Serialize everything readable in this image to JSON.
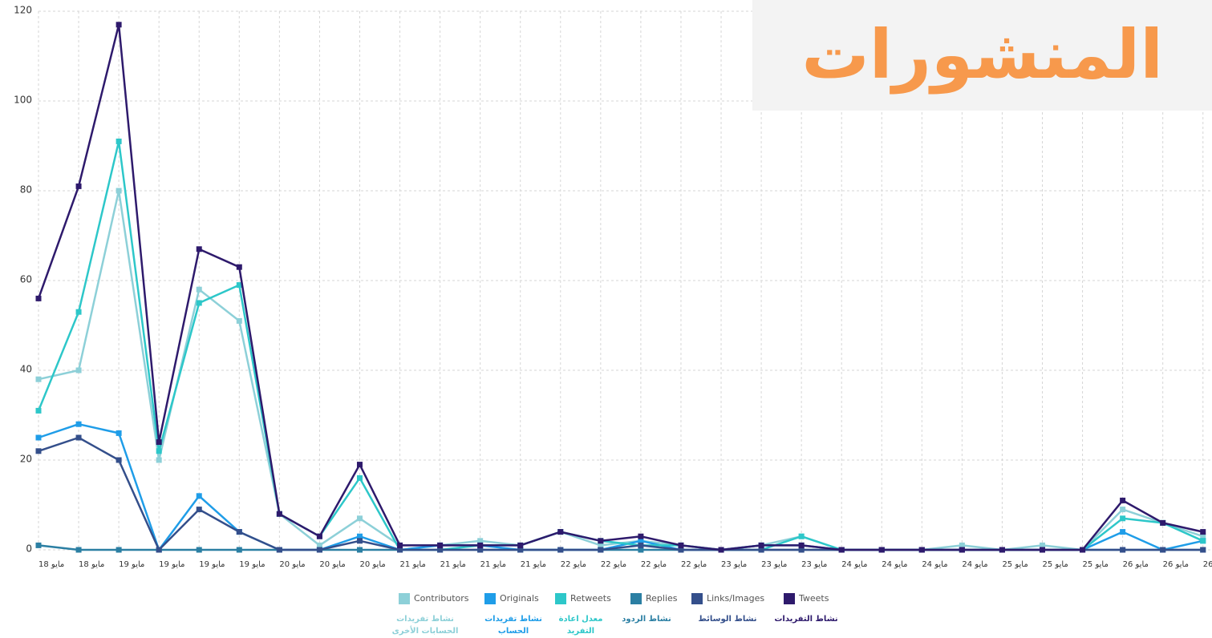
{
  "chart_data": {
    "type": "line",
    "title": "المنشورات",
    "categories": [
      "مايو 18",
      "مايو 18",
      "مايو 19",
      "مايو 19",
      "مايو 19",
      "مايو 19",
      "مايو 20",
      "مايو 20",
      "مايو 20",
      "مايو 21",
      "مايو 21",
      "مايو 21",
      "مايو 21",
      "مايو 22",
      "مايو 22",
      "مايو 22",
      "مايو 22",
      "مايو 23",
      "مايو 23",
      "مايو 23",
      "مايو 24",
      "مايو 24",
      "مايو 24",
      "مايو 24",
      "مايو 25",
      "مايو 25",
      "مايو 25",
      "مايو 26",
      "مايو 26",
      "مايو 26"
    ],
    "ylim": [
      0,
      120
    ],
    "yticks": [
      0,
      20,
      40,
      60,
      80,
      100,
      120
    ],
    "grid": true,
    "series": [
      {
        "name": "Contributors",
        "color": "#8dd0d8",
        "description": [
          "نشاط تفريدات",
          "الحسابات الأخرى"
        ],
        "values": [
          38,
          40,
          80,
          20,
          58,
          51,
          8,
          1,
          7,
          1,
          1,
          2,
          1,
          4,
          1,
          2,
          1,
          0,
          1,
          3,
          0,
          0,
          0,
          1,
          0,
          1,
          0,
          9,
          6,
          3
        ]
      },
      {
        "name": "Originals",
        "color": "#1f9de8",
        "description": [
          "نشاط تفريدات",
          "الحساب"
        ],
        "values": [
          25,
          28,
          26,
          0,
          12,
          4,
          0,
          0,
          3,
          0,
          1,
          1,
          0,
          0,
          0,
          2,
          0,
          0,
          1,
          1,
          0,
          0,
          0,
          0,
          0,
          0,
          0,
          4,
          0,
          2
        ]
      },
      {
        "name": "Retweets",
        "color": "#2dc7c9",
        "description": [
          "معدل اعادة",
          "التفريد"
        ],
        "values": [
          31,
          53,
          91,
          22,
          55,
          59,
          8,
          3,
          16,
          0,
          0,
          1,
          1,
          4,
          2,
          1,
          1,
          0,
          0,
          3,
          0,
          0,
          0,
          0,
          0,
          0,
          0,
          7,
          6,
          2
        ]
      },
      {
        "name": "Replies",
        "color": "#2b7fa3",
        "description": [
          "نشاط الردود"
        ],
        "values": [
          1,
          0,
          0,
          0,
          0,
          0,
          0,
          0,
          0,
          0,
          0,
          0,
          0,
          0,
          0,
          0,
          0,
          0,
          0,
          0,
          0,
          0,
          0,
          0,
          0,
          0,
          0,
          0,
          0,
          0
        ]
      },
      {
        "name": "Links/Images",
        "color": "#344f8b",
        "description": [
          "نشاط الوسائط"
        ],
        "values": [
          22,
          25,
          20,
          0,
          9,
          4,
          0,
          0,
          2,
          0,
          0,
          0,
          0,
          0,
          0,
          1,
          0,
          0,
          0,
          0,
          0,
          0,
          0,
          0,
          0,
          0,
          0,
          0,
          0,
          0
        ]
      },
      {
        "name": "Tweets",
        "color": "#2e1a6c",
        "description": [
          "نشاط التفريدات"
        ],
        "values": [
          56,
          81,
          117,
          24,
          67,
          63,
          8,
          3,
          19,
          1,
          1,
          1,
          1,
          4,
          2,
          3,
          1,
          0,
          1,
          1,
          0,
          0,
          0,
          0,
          0,
          0,
          0,
          11,
          6,
          4
        ]
      }
    ]
  }
}
